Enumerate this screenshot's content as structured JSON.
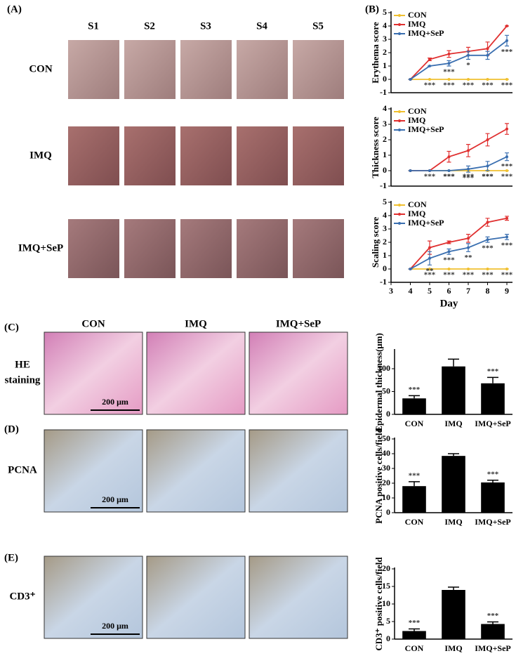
{
  "panel_labels": [
    "(A)",
    "(B)",
    "(C)",
    "(D)",
    "(E)"
  ],
  "photo_grid": {
    "columns": [
      "S1",
      "S2",
      "S3",
      "S4",
      "S5"
    ],
    "rows": [
      "CON",
      "IMQ",
      "IMQ+SeP"
    ]
  },
  "histology": {
    "columns": [
      "CON",
      "IMQ",
      "IMQ+SeP"
    ],
    "rows": [
      [
        "HE",
        "staining"
      ],
      [
        "PCNA"
      ],
      [
        "CD3⁺"
      ]
    ],
    "scale_bar": "200 μm"
  },
  "chart_data": [
    {
      "type": "line",
      "ylabel": "Erythema score",
      "x": [
        4,
        5,
        6,
        7,
        8,
        9
      ],
      "xlim": [
        3,
        9
      ],
      "ylim": [
        -1,
        5
      ],
      "yticks": [
        -1,
        0,
        1,
        2,
        3,
        4,
        5
      ],
      "legend": "upper left",
      "series": [
        {
          "name": "CON",
          "color": "#f0c030",
          "values": [
            0,
            0,
            0,
            0,
            0,
            0
          ],
          "errors": [
            0,
            0,
            0,
            0,
            0,
            0
          ],
          "significance": [
            null,
            "***",
            "***",
            "***",
            "***",
            "***"
          ]
        },
        {
          "name": "IMQ",
          "color": "#e03030",
          "values": [
            0,
            1.5,
            1.9,
            2.1,
            2.3,
            4.0
          ],
          "errors": [
            0,
            0.1,
            0.25,
            0.3,
            0.5,
            0
          ]
        },
        {
          "name": "IMQ+SeP",
          "color": "#3a6fb0",
          "values": [
            0,
            1.0,
            1.2,
            1.8,
            1.8,
            2.9
          ],
          "errors": [
            0,
            0,
            0.2,
            0.3,
            0.3,
            0.4
          ],
          "significance": [
            null,
            null,
            "***",
            "*",
            null,
            "***"
          ]
        }
      ]
    },
    {
      "type": "line",
      "ylabel": "Thickness score",
      "x": [
        4,
        5,
        6,
        7,
        8,
        9
      ],
      "xlim": [
        3,
        9
      ],
      "ylim": [
        -1,
        4
      ],
      "yticks": [
        -1,
        0,
        1,
        2,
        3,
        4
      ],
      "legend": "upper left",
      "series": [
        {
          "name": "CON",
          "color": "#f0c030",
          "values": [
            0,
            0,
            0,
            0,
            0,
            0
          ],
          "errors": [
            0,
            0,
            0,
            0,
            0,
            0
          ],
          "significance": [
            null,
            "***",
            "***",
            "***",
            "***",
            "***"
          ]
        },
        {
          "name": "IMQ",
          "color": "#e03030",
          "values": [
            0,
            0,
            0.9,
            1.3,
            2.0,
            2.7
          ],
          "errors": [
            0,
            0,
            0.35,
            0.4,
            0.4,
            0.35
          ]
        },
        {
          "name": "IMQ+SeP",
          "color": "#3a6fb0",
          "values": [
            0,
            0,
            0,
            0.1,
            0.3,
            0.9
          ],
          "errors": [
            0,
            0,
            0,
            0.2,
            0.3,
            0.25
          ],
          "significance": [
            null,
            null,
            "***",
            "***",
            "***",
            "***"
          ]
        }
      ]
    },
    {
      "type": "line",
      "ylabel": "Scaling score",
      "xlabel": "Day",
      "x": [
        4,
        5,
        6,
        7,
        8,
        9
      ],
      "xlim": [
        3,
        9
      ],
      "xticks": [
        3,
        4,
        5,
        6,
        7,
        8,
        9
      ],
      "ylim": [
        -1,
        5
      ],
      "yticks": [
        -1,
        0,
        1,
        2,
        3,
        4,
        5
      ],
      "legend": "upper left",
      "series": [
        {
          "name": "CON",
          "color": "#f0c030",
          "values": [
            0,
            0,
            0,
            0,
            0,
            0
          ],
          "errors": [
            0,
            0,
            0,
            0,
            0,
            0
          ],
          "significance": [
            null,
            "***",
            "***",
            "***",
            "***",
            "***"
          ]
        },
        {
          "name": "IMQ",
          "color": "#e03030",
          "values": [
            0,
            1.6,
            2.0,
            2.3,
            3.5,
            3.8
          ],
          "errors": [
            0,
            0.5,
            0.1,
            0.3,
            0.3,
            0.15
          ]
        },
        {
          "name": "IMQ+SeP",
          "color": "#3a6fb0",
          "values": [
            0,
            0.8,
            1.3,
            1.6,
            2.2,
            2.4
          ],
          "errors": [
            0,
            0.5,
            0.2,
            0.3,
            0.2,
            0.2
          ],
          "significance": [
            null,
            "**",
            "***",
            "**",
            "***",
            "***"
          ]
        }
      ]
    },
    {
      "type": "bar",
      "ylabel": "Epidermal thickness(μm)",
      "categories": [
        "CON",
        "IMQ",
        "IMQ+SeP"
      ],
      "values": [
        35,
        105,
        68
      ],
      "errors": [
        6,
        16,
        13
      ],
      "significance": [
        "***",
        null,
        "***"
      ],
      "color": "#000000",
      "ylim": [
        0,
        140
      ],
      "yticks": [
        0,
        50,
        100
      ]
    },
    {
      "type": "bar",
      "ylabel": "PCNA positive cells/field",
      "categories": [
        "CON",
        "IMQ",
        "IMQ+SeP"
      ],
      "values": [
        18,
        38.5,
        20.5
      ],
      "errors": [
        3,
        1.5,
        1.5
      ],
      "significance": [
        "***",
        null,
        "***"
      ],
      "color": "#000000",
      "ylim": [
        0,
        50
      ],
      "yticks": [
        0,
        10,
        20,
        30,
        40,
        50
      ]
    },
    {
      "type": "bar",
      "ylabel": "CD3⁺ positive cells/field",
      "categories": [
        "CON",
        "IMQ",
        "IMQ+SeP"
      ],
      "values": [
        2.3,
        14,
        4.3
      ],
      "errors": [
        0.6,
        0.8,
        0.6
      ],
      "significance": [
        "***",
        null,
        "***"
      ],
      "color": "#000000",
      "ylim": [
        0,
        20
      ],
      "yticks": [
        0,
        5,
        10,
        15,
        20
      ]
    }
  ]
}
